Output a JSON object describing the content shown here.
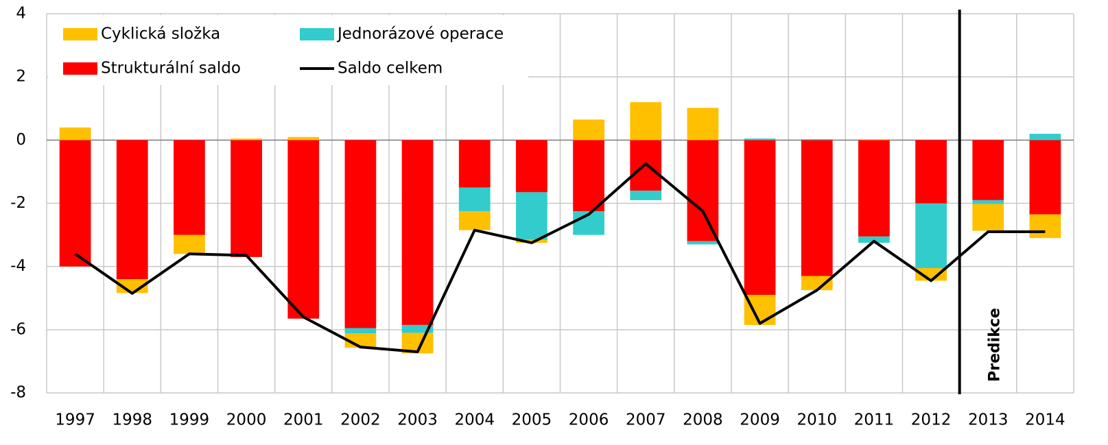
{
  "chart_data": {
    "type": "stacked-bar-line",
    "categories": [
      "1997",
      "1998",
      "1999",
      "2000",
      "2001",
      "2002",
      "2003",
      "2004",
      "2005",
      "2006",
      "2007",
      "2008",
      "2009",
      "2010",
      "2011",
      "2012",
      "2013",
      "2014"
    ],
    "series": [
      {
        "name": "Cyklická složka",
        "type": "bar",
        "color": "#ffc000",
        "values": [
          0.4,
          -0.44,
          -0.6,
          0.05,
          0.1,
          -0.45,
          -0.65,
          -0.6,
          -0.1,
          0.65,
          1.2,
          1.02,
          -0.95,
          -0.45,
          0.03,
          -0.4,
          -0.85,
          -0.75
        ]
      },
      {
        "name": "Jednorázové operace",
        "type": "bar",
        "color": "#33cccc",
        "values": [
          0,
          0,
          0,
          0,
          0,
          -0.17,
          -0.25,
          -0.75,
          -1.5,
          -0.75,
          -0.3,
          -0.1,
          0.05,
          0.03,
          -0.2,
          -2.05,
          -0.12,
          0.2
        ]
      },
      {
        "name": "Strukturální saldo",
        "type": "bar",
        "color": "#ff0000",
        "values": [
          -4.0,
          -4.4,
          -3.0,
          -3.7,
          -5.65,
          -5.95,
          -5.85,
          -1.5,
          -1.65,
          -2.25,
          -1.6,
          -3.2,
          -4.9,
          -4.3,
          -3.05,
          -2.0,
          -1.9,
          -2.35
        ]
      },
      {
        "name": "Saldo celkem",
        "type": "line",
        "color": "#000000",
        "values": [
          -3.6,
          -4.85,
          -3.6,
          -3.65,
          -5.6,
          -6.55,
          -6.7,
          -2.85,
          -3.25,
          -2.35,
          -0.75,
          -2.25,
          -5.8,
          -4.75,
          -3.2,
          -4.45,
          -2.9,
          -2.9
        ]
      }
    ],
    "ylim": [
      -8,
      4
    ],
    "yticks": [
      -8,
      -6,
      -4,
      -2,
      0,
      2,
      4
    ],
    "grid": true,
    "legend": "upper left",
    "annotations": [
      {
        "text": "Predikce",
        "category": "2013"
      }
    ]
  }
}
